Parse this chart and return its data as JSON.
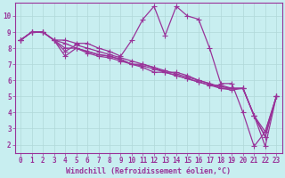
{
  "xlabel": "Windchill (Refroidissement éolien,°C)",
  "bg_color": "#c8eef0",
  "line_color": "#993399",
  "grid_color": "#b0d8d8",
  "xlim": [
    -0.5,
    23.5
  ],
  "ylim": [
    1.5,
    10.8
  ],
  "xticks": [
    0,
    1,
    2,
    3,
    4,
    5,
    6,
    7,
    8,
    9,
    10,
    11,
    12,
    13,
    14,
    15,
    16,
    17,
    18,
    19,
    20,
    21,
    22,
    23
  ],
  "yticks": [
    2,
    3,
    4,
    5,
    6,
    7,
    8,
    9,
    10
  ],
  "lines": [
    [
      8.5,
      9.0,
      9.0,
      8.5,
      8.5,
      8.3,
      8.3,
      8.0,
      7.8,
      7.5,
      8.5,
      9.8,
      10.6,
      8.8,
      10.6,
      10.0,
      9.8,
      8.0,
      5.8,
      5.8,
      4.0,
      1.9,
      2.8,
      5.0
    ],
    [
      8.5,
      9.0,
      9.0,
      8.5,
      8.0,
      8.0,
      7.8,
      7.6,
      7.5,
      7.3,
      7.0,
      7.0,
      6.8,
      6.5,
      6.5,
      6.3,
      6.0,
      5.8,
      5.5,
      5.5,
      5.5,
      3.8,
      2.8,
      5.0
    ],
    [
      8.5,
      9.0,
      9.0,
      8.5,
      7.8,
      8.2,
      8.0,
      7.8,
      7.6,
      7.4,
      7.2,
      7.0,
      6.8,
      6.6,
      6.4,
      6.2,
      6.0,
      5.8,
      5.6,
      5.5,
      5.5,
      3.8,
      2.5,
      5.0
    ],
    [
      8.5,
      9.0,
      9.0,
      8.5,
      7.5,
      8.0,
      7.8,
      7.6,
      7.5,
      7.3,
      7.0,
      6.9,
      6.7,
      6.5,
      6.3,
      6.1,
      5.9,
      5.7,
      5.5,
      5.4,
      5.5,
      3.8,
      2.5,
      5.0
    ],
    [
      8.5,
      9.0,
      9.0,
      8.5,
      8.3,
      8.0,
      7.7,
      7.5,
      7.4,
      7.2,
      7.0,
      6.8,
      6.5,
      6.5,
      6.3,
      6.1,
      5.9,
      5.7,
      5.7,
      5.5,
      5.5,
      3.8,
      1.9,
      5.0
    ]
  ],
  "marker_size": 2.5,
  "line_width": 0.9,
  "tick_fontsize": 5.5,
  "label_fontsize": 6.0
}
